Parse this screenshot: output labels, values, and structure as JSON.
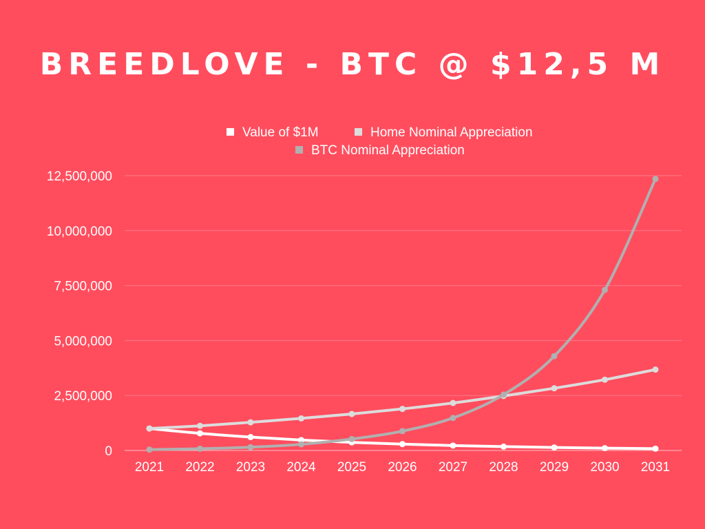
{
  "chart_data": {
    "type": "line",
    "title": "BREEDLOVE - BTC @ $12,5 M",
    "xlabel": "",
    "ylabel": "",
    "ylim": [
      0,
      12500000
    ],
    "y_ticks": [
      0,
      2500000,
      5000000,
      7500000,
      10000000,
      12500000
    ],
    "y_tick_labels": [
      "0",
      "2,500,000",
      "5,000,000",
      "7,500,000",
      "10,000,000",
      "12,500,000"
    ],
    "categories": [
      "2021",
      "2022",
      "2023",
      "2024",
      "2025",
      "2026",
      "2027",
      "2028",
      "2029",
      "2030",
      "2031"
    ],
    "grid": true,
    "legend_position": "top",
    "series": [
      {
        "name": "Value of $1M",
        "color": "#ffffff",
        "values": [
          1000000,
          780000,
          610000,
          475000,
          370000,
          290000,
          225000,
          175000,
          137000,
          107000,
          83000
        ]
      },
      {
        "name": "Home Nominal Appreciation",
        "color": "#dcdcdc",
        "values": [
          1000000,
          1120000,
          1280000,
          1460000,
          1660000,
          1890000,
          2160000,
          2480000,
          2830000,
          3220000,
          3680000
        ]
      },
      {
        "name": "BTC Nominal Appreciation",
        "color": "#b0b0b0",
        "values": [
          40000,
          80000,
          150000,
          280000,
          520000,
          880000,
          1480000,
          2540000,
          4290000,
          7300000,
          12350000
        ]
      }
    ]
  }
}
